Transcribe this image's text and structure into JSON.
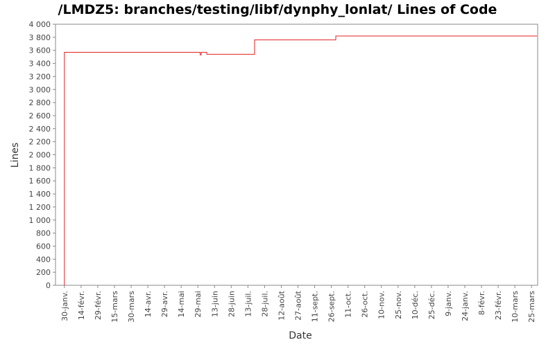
{
  "chart_data": {
    "type": "line",
    "title": "/LMDZ5: branches/testing/libf/dynphy_lonlat/ Lines of Code",
    "x_label": "Date",
    "y_label": "Lines",
    "series": [
      {
        "name": "Lines",
        "color": "#e02020",
        "x": [
          0,
          0,
          122,
          122,
          123,
          123,
          128,
          128,
          171,
          171,
          244,
          244,
          425
        ],
        "values": [
          0,
          3570,
          3570,
          3530,
          3530,
          3570,
          3570,
          3540,
          3540,
          3760,
          3760,
          3820,
          3820
        ]
      }
    ],
    "xlim": [
      -8,
      425.5
    ],
    "xticks": [
      {
        "value": 0,
        "label": "30-janv."
      },
      {
        "value": 15,
        "label": "14-févr."
      },
      {
        "value": 30,
        "label": "29-févr."
      },
      {
        "value": 45,
        "label": "15-mars"
      },
      {
        "value": 60,
        "label": "30-mars"
      },
      {
        "value": 75,
        "label": "14-avr."
      },
      {
        "value": 90,
        "label": "29-avr."
      },
      {
        "value": 105,
        "label": "14-mai"
      },
      {
        "value": 120,
        "label": "29-mai"
      },
      {
        "value": 135,
        "label": "13-juin"
      },
      {
        "value": 150,
        "label": "28-juin"
      },
      {
        "value": 165,
        "label": "13-juil."
      },
      {
        "value": 180,
        "label": "28-juil."
      },
      {
        "value": 195,
        "label": "12-août"
      },
      {
        "value": 210,
        "label": "27-août"
      },
      {
        "value": 225,
        "label": "11-sept."
      },
      {
        "value": 240,
        "label": "26-sept."
      },
      {
        "value": 255,
        "label": "11-oct."
      },
      {
        "value": 270,
        "label": "26-oct."
      },
      {
        "value": 285,
        "label": "10-nov."
      },
      {
        "value": 300,
        "label": "25-nov."
      },
      {
        "value": 315,
        "label": "10-déc."
      },
      {
        "value": 330,
        "label": "25-déc."
      },
      {
        "value": 345,
        "label": "9-janv."
      },
      {
        "value": 360,
        "label": "24-janv."
      },
      {
        "value": 375,
        "label": "8-févr."
      },
      {
        "value": 390,
        "label": "23-févr."
      },
      {
        "value": 405,
        "label": "10-mars"
      },
      {
        "value": 420,
        "label": "25-mars"
      }
    ],
    "ylim": [
      0,
      4000
    ],
    "yticks": [
      0,
      200,
      400,
      600,
      800,
      {
        "value": 1000,
        "label": "1 000"
      },
      {
        "value": 1200,
        "label": "1 200"
      },
      {
        "value": 1400,
        "label": "1 400"
      },
      {
        "value": 1600,
        "label": "1 600"
      },
      {
        "value": 1800,
        "label": "1 800"
      },
      {
        "value": 2000,
        "label": "2 000"
      },
      {
        "value": 2200,
        "label": "2 200"
      },
      {
        "value": 2400,
        "label": "2 400"
      },
      {
        "value": 2600,
        "label": "2 600"
      },
      {
        "value": 2800,
        "label": "2 800"
      },
      {
        "value": 3000,
        "label": "3 000"
      },
      {
        "value": 3200,
        "label": "3 200"
      },
      {
        "value": 3400,
        "label": "3 400"
      },
      {
        "value": 3600,
        "label": "3 600"
      },
      {
        "value": 3800,
        "label": "3 800"
      },
      {
        "value": 4000,
        "label": "4 000"
      }
    ],
    "grid": false
  }
}
